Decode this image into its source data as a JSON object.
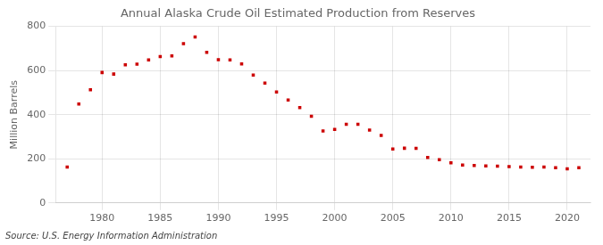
{
  "chart_data": {
    "type": "scatter",
    "title": "Annual Alaska Crude Oil Estimated Production from Reserves",
    "ylabel": "Million Barrels",
    "annotations": [
      "Source: U.S. Energy Information Administration"
    ],
    "x": [
      1977,
      1978,
      1979,
      1980,
      1981,
      1982,
      1983,
      1984,
      1985,
      1986,
      1987,
      1988,
      1989,
      1990,
      1991,
      1992,
      1993,
      1994,
      1995,
      1996,
      1997,
      1998,
      1999,
      2000,
      2001,
      2002,
      2003,
      2004,
      2005,
      2006,
      2007,
      2008,
      2009,
      2010,
      2011,
      2012,
      2013,
      2014,
      2015,
      2016,
      2017,
      2018,
      2019,
      2020,
      2021
    ],
    "values": [
      163,
      448,
      513,
      591,
      584,
      626,
      629,
      648,
      663,
      666,
      722,
      752,
      682,
      649,
      648,
      630,
      579,
      543,
      503,
      466,
      432,
      393,
      326,
      333,
      356,
      356,
      330,
      306,
      244,
      248,
      247,
      206,
      196,
      182,
      172,
      170,
      168,
      167,
      165,
      163,
      162,
      163,
      160,
      155,
      160
    ],
    "color": "#cc0000",
    "marker": "square",
    "xlim": [
      1976,
      2022
    ],
    "xticks": [
      1980,
      1985,
      1990,
      1995,
      2000,
      2005,
      2010,
      2015,
      2020
    ],
    "ylim": [
      0,
      800
    ],
    "yticks": [
      0,
      200,
      400,
      600,
      800
    ],
    "grid": true
  }
}
